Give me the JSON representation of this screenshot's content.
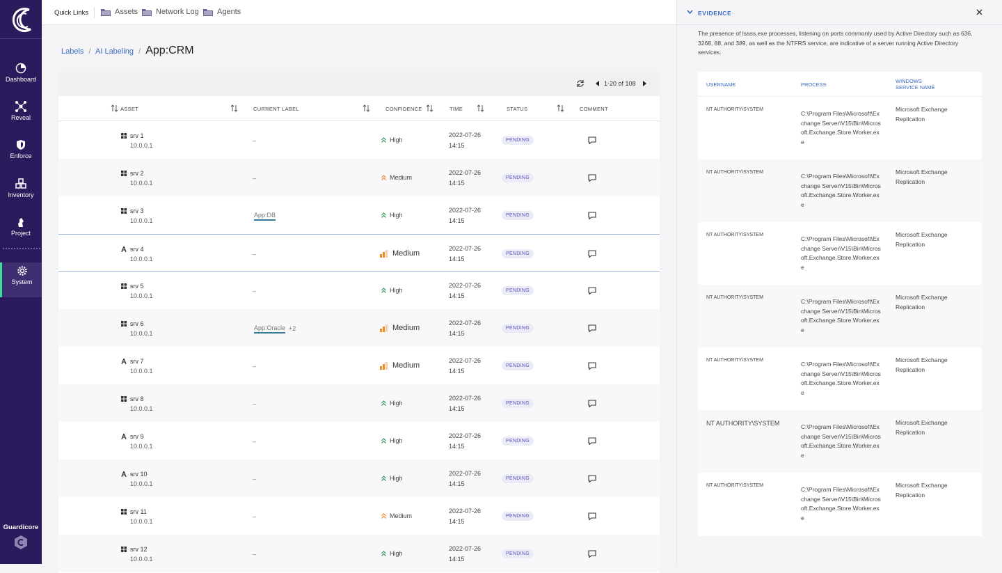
{
  "sidebar": {
    "items": [
      "Dashboard",
      "Reveal",
      "Enforce",
      "Inventory",
      "Project",
      "System"
    ],
    "brand": "Guardicore"
  },
  "quick_links": {
    "label": "Quick Links",
    "links": [
      "Assets",
      "Network Log",
      "Agents"
    ]
  },
  "breadcrumb": {
    "path": [
      "Labels",
      "AI Labeling"
    ],
    "current": "App:CRM"
  },
  "table": {
    "pagination": "1-20 of 108",
    "columns": [
      "ASSET",
      "CURRENT LABEL",
      "CONFIDENCE",
      "TIME",
      "STATUS",
      "COMMENT"
    ],
    "rows": [
      {
        "os": "windows",
        "name": "srv 1",
        "ip": "10.0.0.1",
        "label": "–",
        "confidence": "High",
        "style": "chevron",
        "date": "2022-07-26",
        "time": "14:15",
        "status": "PENDING"
      },
      {
        "os": "windows",
        "name": "srv 2",
        "ip": "10.0.0.1",
        "label": "–",
        "confidence": "Medium",
        "style": "chevron",
        "date": "2022-07-26",
        "time": "14:15",
        "status": "PENDING"
      },
      {
        "os": "windows",
        "name": "srv 3",
        "ip": "10.0.0.1",
        "label": "App:DB",
        "confidence": "High",
        "style": "chevron",
        "date": "2022-07-26",
        "time": "14:15",
        "status": "PENDING"
      },
      {
        "os": "linux",
        "name": "srv 4",
        "ip": "10.0.0.1",
        "label": "–",
        "confidence": "Medium",
        "style": "bars",
        "date": "2022-07-26",
        "time": "14:15",
        "status": "PENDING"
      },
      {
        "os": "windows",
        "name": "srv 5",
        "ip": "10.0.0.1",
        "label": "–",
        "confidence": "High",
        "style": "chevron",
        "date": "2022-07-26",
        "time": "14:15",
        "status": "PENDING"
      },
      {
        "os": "windows",
        "name": "srv 6",
        "ip": "10.0.0.1",
        "label": "App:Oracle",
        "label_extra": "+2",
        "confidence": "Medium",
        "style": "bars",
        "date": "2022-07-26",
        "time": "14:15",
        "status": "PENDING"
      },
      {
        "os": "linux",
        "name": "srv 7",
        "ip": "10.0.0.1",
        "label": "–",
        "confidence": "Medium",
        "style": "bars",
        "date": "2022-07-26",
        "time": "14:15",
        "status": "PENDING"
      },
      {
        "os": "windows",
        "name": "srv 8",
        "ip": "10.0.0.1",
        "label": "–",
        "confidence": "High",
        "style": "chevron",
        "date": "2022-07-26",
        "time": "14:15",
        "status": "PENDING"
      },
      {
        "os": "linux",
        "name": "srv 9",
        "ip": "10.0.0.1",
        "label": "–",
        "confidence": "High",
        "style": "chevron",
        "date": "2022-07-26",
        "time": "14:15",
        "status": "PENDING"
      },
      {
        "os": "linux",
        "name": "srv 10",
        "ip": "10.0.0.1",
        "label": "–",
        "confidence": "High",
        "style": "chevron",
        "date": "2022-07-26",
        "time": "14:15",
        "status": "PENDING"
      },
      {
        "os": "windows",
        "name": "srv 11",
        "ip": "10.0.0.1",
        "label": "–",
        "confidence": "Medium",
        "style": "chevron",
        "date": "2022-07-26",
        "time": "14:15",
        "status": "PENDING"
      },
      {
        "os": "windows",
        "name": "srv 12",
        "ip": "10.0.0.1",
        "label": "–",
        "confidence": "High",
        "style": "chevron",
        "date": "2022-07-26",
        "time": "14:15",
        "status": "PENDING"
      }
    ]
  },
  "evidence": {
    "title": "EVIDENCE",
    "description": "The presence of lsass.exe processes, listening on ports commonly used by Active Directory such as 636, 3268, 88, and 389, as well as the NTFRS service, are indicative of a server running Active Directory services.",
    "columns": [
      "USERNAME",
      "PROCESS",
      "WINDOWS SERVICE NAME"
    ],
    "rows": [
      [
        "NT AUTHORITY\\SYSTEM",
        "C:\\Program Files\\Microsoft\\Exchange Server\\V15\\Bin\\Microsoft.Exchange.Store.Worker.exe",
        "Microsoft Exchange Replication"
      ],
      [
        "NT AUTHORITY\\SYSTEM",
        "C:\\Program Files\\Microsoft\\Exchange Server\\V15\\Bin\\Microsoft.Exchange.Store.Worker.exe",
        "Microsoft Exchange Replication"
      ],
      [
        "NT AUTHORITY\\SYSTEM",
        "C:\\Program Files\\Microsoft\\Exchange Server\\V15\\Bin\\Microsoft.Exchange.Store.Worker.exe",
        "Microsoft Exchange Replication"
      ],
      [
        "NT AUTHORITY\\SYSTEM",
        "C:\\Program Files\\Microsoft\\Exchange Server\\V15\\Bin\\Microsoft.Exchange.Store.Worker.exe",
        "Microsoft Exchange Replication"
      ],
      [
        "NT AUTHORITY\\SYSTEM",
        "C:\\Program Files\\Microsoft\\Exchange Server\\V15\\Bin\\Microsoft.Exchange.Store.Worker.exe",
        "Microsoft Exchange Replication"
      ],
      [
        "NT AUTHORITY\\SYSTEM",
        "C:\\Program Files\\Microsoft\\Exchange Server\\V15\\Bin\\Microsoft.Exchange.Store.Worker.exe",
        "Microsoft Exchange Replication"
      ],
      [
        "NT AUTHORITY\\SYSTEM",
        "C:\\Program Files\\Microsoft\\Exchange Server\\V15\\Bin\\Microsoft.Exchange.Store.Worker.exe",
        "Microsoft Exchange Replication"
      ]
    ]
  }
}
